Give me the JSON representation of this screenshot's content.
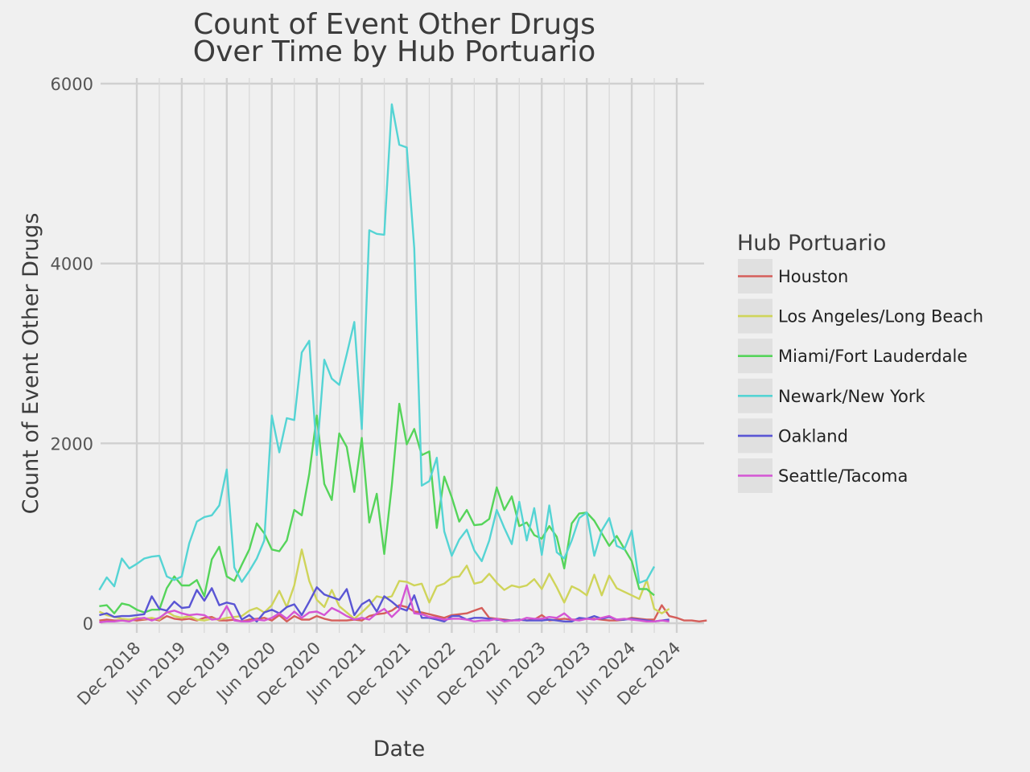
{
  "chart_data": {
    "type": "line",
    "title_lines": [
      "Count of Event Other Drugs",
      "Over Time by Hub Portuario"
    ],
    "xlabel": "Date",
    "ylabel": "Count of Event Other Drugs",
    "ylim": [
      0,
      6000
    ],
    "yticks": [
      0,
      2000,
      4000,
      6000
    ],
    "x_tick_labels": [
      "Dec 2018",
      "Jun 2019",
      "Dec 2019",
      "Jun 2020",
      "Dec 2020",
      "Jun 2021",
      "Dec 2021",
      "Jun 2022",
      "Dec 2022",
      "Jun 2023",
      "Dec 2023",
      "Jun 2024",
      "Dec 2024"
    ],
    "x_tick_dates": [
      "2018-12",
      "2019-06",
      "2019-12",
      "2020-06",
      "2020-12",
      "2021-06",
      "2021-12",
      "2022-06",
      "2022-12",
      "2023-06",
      "2023-12",
      "2024-06",
      "2024-12"
    ],
    "x_range": [
      "2018-07",
      "2024-12"
    ],
    "legend_title": "Hub Portuario",
    "legend_position": "right",
    "grid": true,
    "series": [
      {
        "name": "Houston",
        "color": "#d55e5a",
        "values": [
          30,
          40,
          30,
          30,
          40,
          30,
          40,
          50,
          30,
          80,
          50,
          40,
          50,
          30,
          60,
          70,
          30,
          30,
          40,
          20,
          40,
          50,
          60,
          30,
          90,
          20,
          80,
          40,
          40,
          80,
          50,
          30,
          30,
          30,
          40,
          30,
          80,
          100,
          110,
          140,
          200,
          180,
          130,
          120,
          100,
          80,
          60,
          90,
          100,
          110,
          140,
          170,
          60,
          50,
          40,
          30,
          40,
          30,
          40,
          90,
          30,
          40,
          50,
          40,
          40,
          50,
          50,
          40,
          30,
          30,
          40,
          60,
          50,
          40,
          40,
          200,
          80,
          60,
          30,
          30,
          20,
          30
        ]
      },
      {
        "name": "Los Angeles/Long Beach",
        "color": "#cfd45a",
        "values": [
          130,
          90,
          70,
          50,
          40,
          60,
          50,
          60,
          40,
          130,
          80,
          60,
          80,
          40,
          30,
          50,
          40,
          60,
          70,
          80,
          140,
          170,
          120,
          200,
          360,
          180,
          420,
          820,
          470,
          260,
          180,
          370,
          190,
          120,
          50,
          120,
          200,
          300,
          280,
          300,
          470,
          460,
          420,
          440,
          230,
          410,
          440,
          510,
          520,
          640,
          440,
          460,
          550,
          450,
          370,
          420,
          400,
          420,
          490,
          380,
          550,
          400,
          230,
          410,
          370,
          310,
          540,
          310,
          530,
          390,
          350,
          310,
          270,
          480,
          160,
          110,
          160
        ]
      },
      {
        "name": "Miami/Fort Lauderdale",
        "color": "#55d45a",
        "values": [
          190,
          200,
          110,
          220,
          200,
          150,
          120,
          150,
          150,
          390,
          520,
          420,
          420,
          480,
          300,
          710,
          850,
          520,
          470,
          650,
          820,
          1110,
          1000,
          820,
          800,
          920,
          1260,
          1200,
          1660,
          2310,
          1550,
          1370,
          2110,
          1960,
          1460,
          2060,
          1120,
          1440,
          770,
          1530,
          2440,
          1990,
          2160,
          1870,
          1910,
          1060,
          1630,
          1400,
          1130,
          1260,
          1090,
          1100,
          1160,
          1510,
          1260,
          1410,
          1080,
          1120,
          980,
          940,
          1080,
          960,
          610,
          1110,
          1220,
          1230,
          1140,
          1000,
          860,
          970,
          830,
          690,
          380,
          380,
          310
        ]
      },
      {
        "name": "Newark/New York",
        "color": "#55d4d4",
        "values": [
          370,
          510,
          410,
          720,
          610,
          660,
          720,
          740,
          750,
          520,
          480,
          520,
          890,
          1130,
          1180,
          1200,
          1310,
          1710,
          620,
          460,
          580,
          720,
          920,
          2310,
          1900,
          2280,
          2260,
          3010,
          3140,
          1870,
          2930,
          2720,
          2650,
          2990,
          3350,
          2160,
          4370,
          4330,
          4320,
          5770,
          5320,
          5290,
          4170,
          1530,
          1580,
          1840,
          1020,
          750,
          930,
          1040,
          810,
          690,
          920,
          1260,
          1060,
          880,
          1350,
          920,
          1280,
          760,
          1310,
          790,
          720,
          920,
          1170,
          1230,
          750,
          1030,
          1170,
          860,
          820,
          1030,
          450,
          480,
          630
        ]
      },
      {
        "name": "Oakland",
        "color": "#5a55d4",
        "values": [
          90,
          110,
          70,
          80,
          80,
          90,
          100,
          300,
          160,
          140,
          240,
          170,
          180,
          370,
          250,
          390,
          200,
          230,
          210,
          40,
          90,
          20,
          120,
          150,
          110,
          180,
          210,
          90,
          240,
          400,
          320,
          290,
          260,
          380,
          90,
          210,
          260,
          130,
          300,
          240,
          170,
          140,
          310,
          60,
          60,
          40,
          20,
          80,
          80,
          40,
          60,
          60,
          50,
          40,
          30,
          30,
          40,
          30,
          30,
          30,
          40,
          30,
          20,
          20,
          60,
          50,
          80,
          50,
          70,
          40,
          40,
          50,
          40,
          30,
          20,
          30,
          40
        ]
      },
      {
        "name": "Seattle/Tacoma",
        "color": "#d455d4",
        "values": [
          10,
          20,
          20,
          30,
          20,
          50,
          60,
          30,
          60,
          120,
          140,
          110,
          90,
          100,
          90,
          40,
          50,
          190,
          30,
          20,
          20,
          40,
          30,
          60,
          110,
          50,
          130,
          60,
          120,
          130,
          90,
          170,
          130,
          80,
          40,
          60,
          40,
          110,
          160,
          70,
          150,
          420,
          110,
          100,
          70,
          60,
          40,
          50,
          50,
          40,
          20,
          30,
          30,
          50,
          20,
          30,
          30,
          60,
          50,
          50,
          70,
          60,
          110,
          40,
          30,
          50,
          40,
          60,
          80,
          40,
          50,
          40,
          30,
          20,
          20,
          30,
          20
        ]
      }
    ]
  }
}
